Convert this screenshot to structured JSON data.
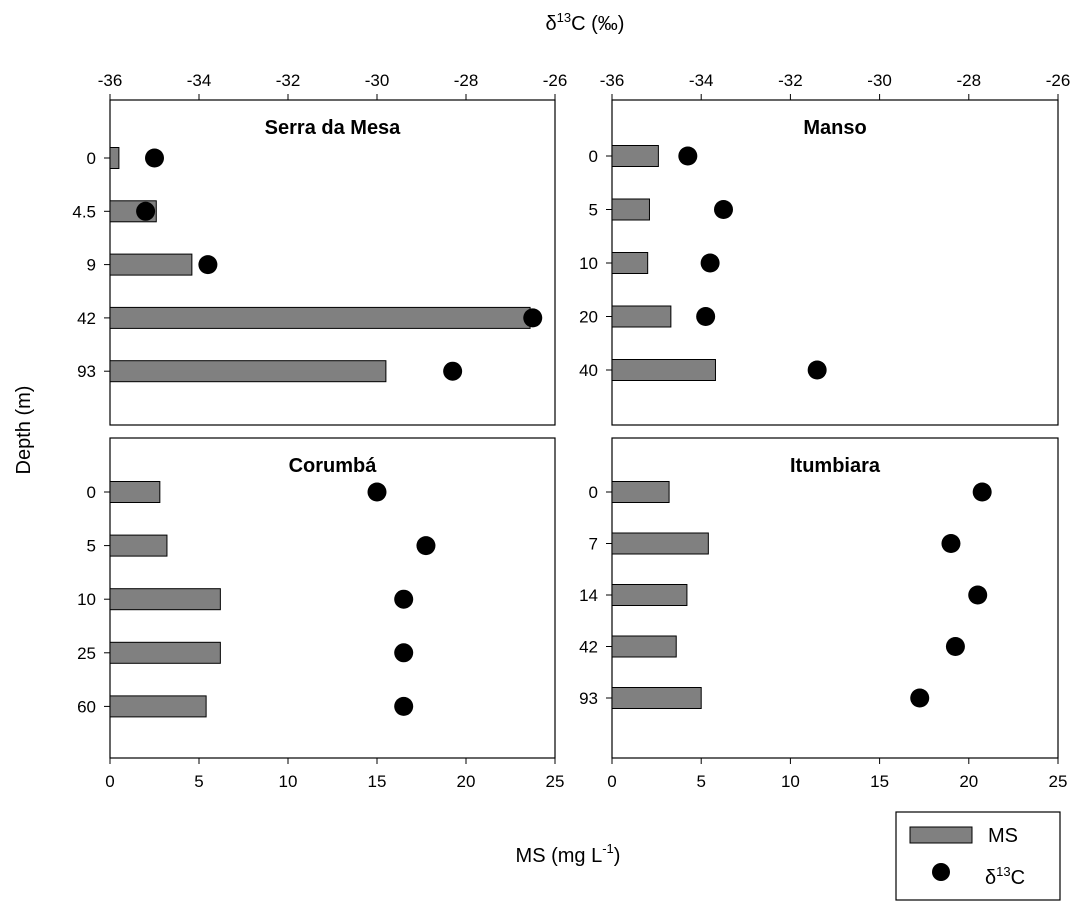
{
  "figure": {
    "top_axis_title_prefix": "δ",
    "top_axis_title_sup": "13",
    "top_axis_title_suffix": "C (‰)",
    "y_axis_title": "Depth (m)",
    "bottom_axis_title_prefix": "MS (mg L",
    "bottom_axis_title_sup": "-1",
    "bottom_axis_title_suffix": ")"
  },
  "legend": {
    "ms_label": "MS",
    "d13c_prefix": "δ",
    "d13c_sup": "13",
    "d13c_suffix": "C"
  },
  "colors": {
    "bar_fill": "#808080",
    "bar_stroke": "#000000",
    "marker": "#000000",
    "frame": "#000000"
  },
  "chart_data": [
    {
      "type": "bar",
      "title": "Serra da Mesa",
      "categories": [
        "0",
        "4.5",
        "9",
        "42",
        "93"
      ],
      "ms": [
        0.5,
        2.6,
        4.6,
        23.6,
        15.5
      ],
      "d13c": [
        -35.0,
        -35.2,
        -33.8,
        -26.5,
        -28.3
      ],
      "xlim_ms": [
        0,
        25
      ],
      "xlim_d13c": [
        -36,
        -26
      ],
      "ms_ticks": [
        "0",
        "5",
        "10",
        "15",
        "20",
        "25"
      ],
      "d13c_ticks": [
        "-36",
        "-34",
        "-32",
        "-30",
        "-28",
        "-26"
      ]
    },
    {
      "type": "bar",
      "title": "Manso",
      "categories": [
        "0",
        "5",
        "10",
        "20",
        "40"
      ],
      "ms": [
        2.6,
        2.1,
        2.0,
        3.3,
        5.8
      ],
      "d13c": [
        -34.3,
        -33.5,
        -33.8,
        -33.9,
        -31.4
      ],
      "xlim_ms": [
        0,
        25
      ],
      "xlim_d13c": [
        -36,
        -26
      ],
      "ms_ticks": [
        "0",
        "5",
        "10",
        "15",
        "20",
        "25"
      ],
      "d13c_ticks": [
        "-36",
        "-34",
        "-32",
        "-30",
        "-28",
        "-26"
      ]
    },
    {
      "type": "bar",
      "title": "Corumbá",
      "categories": [
        "0",
        "5",
        "10",
        "25",
        "60"
      ],
      "ms": [
        2.8,
        3.2,
        6.2,
        6.2,
        5.4
      ],
      "d13c": [
        -30.0,
        -28.9,
        -29.4,
        -29.4,
        -29.4
      ],
      "xlim_ms": [
        0,
        25
      ],
      "xlim_d13c": [
        -36,
        -26
      ],
      "ms_ticks": [
        "0",
        "5",
        "10",
        "15",
        "20",
        "25"
      ],
      "d13c_ticks": [
        "-36",
        "-34",
        "-32",
        "-30",
        "-28",
        "-26"
      ]
    },
    {
      "type": "bar",
      "title": "Itumbiara",
      "categories": [
        "0",
        "7",
        "14",
        "42",
        "93"
      ],
      "ms": [
        3.2,
        5.4,
        4.2,
        3.6,
        5.0
      ],
      "d13c": [
        -27.7,
        -28.4,
        -27.8,
        -28.3,
        -29.1
      ],
      "xlim_ms": [
        0,
        25
      ],
      "xlim_d13c": [
        -36,
        -26
      ],
      "ms_ticks": [
        "0",
        "5",
        "10",
        "15",
        "20",
        "25"
      ],
      "d13c_ticks": [
        "-36",
        "-34",
        "-32",
        "-30",
        "-28",
        "-26"
      ]
    }
  ]
}
